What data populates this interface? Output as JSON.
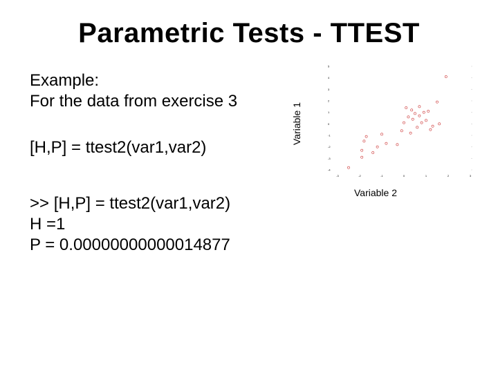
{
  "slide": {
    "title": "Parametric Tests - TTEST",
    "example_lines": [
      "Example:",
      "For the data from exercise 3"
    ],
    "command": "[H,P] = ttest2(var1,var2)",
    "result_lines": [
      ">> [H,P] = ttest2(var1,var2)",
      "H =1",
      "P =  0.00000000000014877"
    ]
  },
  "chart_data": {
    "type": "scatter",
    "title": "",
    "xlabel": "Variable 2",
    "ylabel": "Variable 1",
    "xlim": [
      -3,
      3
    ],
    "ylim": [
      -4,
      5
    ],
    "xticks": [
      "-3",
      "-2",
      "-1",
      "0",
      "1",
      "2",
      "3"
    ],
    "yticks": [
      "5",
      "4",
      "3",
      "2",
      "1",
      "0",
      "-1",
      "-2",
      "-3",
      "-4"
    ],
    "marker_color": "#cc3333",
    "series": [
      {
        "x": [
          -2.5,
          -1.9,
          -1.9,
          -1.8,
          -1.7,
          -1.4,
          -1.2,
          -0.8,
          -0.3,
          -0.1,
          0.0,
          0.1,
          0.2,
          0.3,
          0.35,
          0.4,
          0.5,
          0.6,
          0.7,
          0.8,
          0.9,
          1.0,
          1.1,
          1.2,
          1.3,
          1.5,
          1.6,
          1.9,
          -1.0,
          0.7
        ],
        "y": [
          -3.8,
          -2.9,
          -2.3,
          -1.5,
          -1.1,
          -2.5,
          -2.0,
          -1.7,
          -1.8,
          -0.6,
          0.1,
          1.4,
          0.6,
          -0.8,
          1.2,
          0.4,
          0.9,
          -0.3,
          0.7,
          0.1,
          1.0,
          0.3,
          1.1,
          -0.5,
          -0.2,
          1.9,
          0.0,
          4.1,
          -0.9,
          1.5
        ]
      }
    ]
  }
}
